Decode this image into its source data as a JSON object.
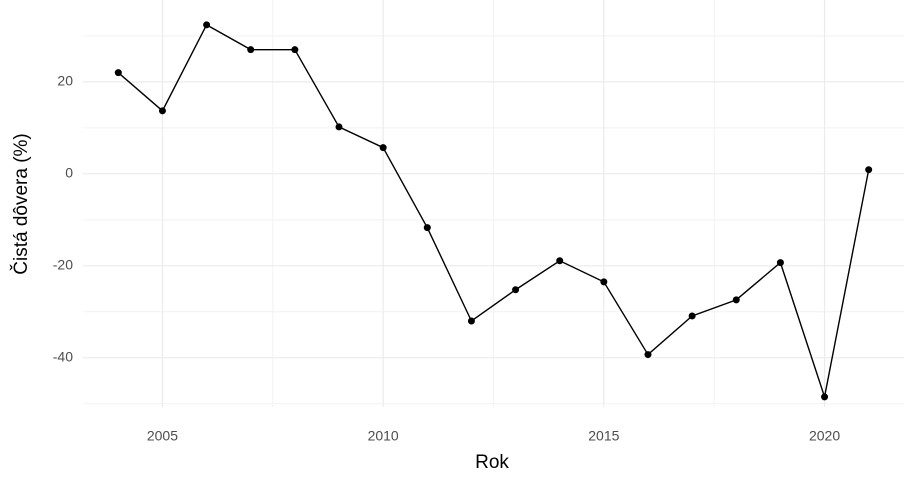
{
  "chart_data": {
    "type": "line",
    "x_label": "Rok",
    "y_label": "Čistá dôvera (%)",
    "x": [
      2004,
      2005,
      2006,
      2007,
      2008,
      2009,
      2010,
      2011,
      2012,
      2013,
      2014,
      2015,
      2016,
      2017,
      2018,
      2019,
      2020,
      2021
    ],
    "series": [
      {
        "name": "Čistá dôvera",
        "color": "#000000",
        "values": [
          22,
          13.7,
          32.4,
          27,
          27,
          10.2,
          5.7,
          -11.7,
          -32,
          -25.2,
          -18.9,
          -23.5,
          -39.3,
          -30.9,
          -27.4,
          -19.3,
          -48.5,
          0.9
        ]
      }
    ],
    "xlim": [
      2003.2,
      2021.8
    ],
    "xticks": [
      2005,
      2010,
      2015,
      2020
    ],
    "minor_xticks": [
      2007.5,
      2012.5,
      2017.5
    ],
    "ylim": [
      -50.7,
      37.8
    ],
    "yticks": [
      -40,
      -20,
      0,
      20
    ],
    "minor_yticks": [
      -50,
      -30,
      -10,
      10,
      30
    ],
    "grid": true
  }
}
